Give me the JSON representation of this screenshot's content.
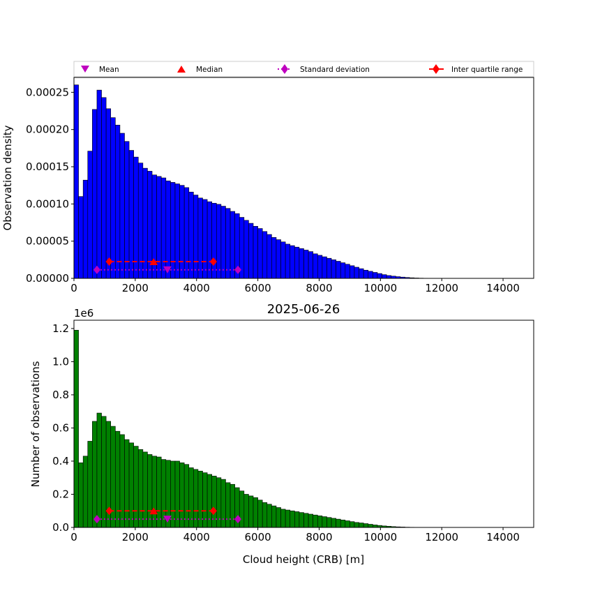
{
  "legend": {
    "items": [
      {
        "label": "Mean",
        "marker": "triangle-down",
        "color": "#bf00bf"
      },
      {
        "label": "Median",
        "marker": "triangle-up",
        "color": "#ff0000"
      },
      {
        "label": "Standard deviation",
        "marker": "diamond",
        "color": "#bf00bf",
        "line": "dotted"
      },
      {
        "label": "Inter quartile range",
        "marker": "diamond",
        "color": "#ff0000",
        "line": "solid"
      }
    ]
  },
  "chart_data": [
    {
      "type": "bar",
      "title": "",
      "xlabel": "",
      "ylabel": "Observation density",
      "xlim": [
        0,
        15000
      ],
      "ylim": [
        0,
        0.00027
      ],
      "xticks": [
        0,
        2000,
        4000,
        6000,
        8000,
        10000,
        12000,
        14000
      ],
      "yticks": [
        0,
        5e-05,
        0.0001,
        0.00015,
        0.0002,
        0.00025
      ],
      "ytick_labels": [
        "0.00000",
        "0.00005",
        "0.00010",
        "0.00015",
        "0.00020",
        "0.00025"
      ],
      "bar_color": "#0000ff",
      "bin_width": 150,
      "bin_start": 0,
      "values": [
        0.00026,
        0.00011,
        0.000132,
        0.000171,
        0.000227,
        0.000253,
        0.000243,
        0.000228,
        0.000216,
        0.000206,
        0.000195,
        0.000184,
        0.000172,
        0.000163,
        0.000155,
        0.000148,
        0.000144,
        0.000139,
        0.000137,
        0.000135,
        0.000131,
        0.000129,
        0.000127,
        0.000125,
        0.000122,
        0.000116,
        0.000112,
        0.000108,
        0.000106,
        0.000103,
        0.000101,
        9.95e-05,
        9.7e-05,
        9.4e-05,
        9e-05,
        8.7e-05,
        8.2e-05,
        7.8e-05,
        7.4e-05,
        7e-05,
        6.7e-05,
        6.3e-05,
        5.9e-05,
        5.5e-05,
        5.2e-05,
        4.9e-05,
        4.6e-05,
        4.4e-05,
        4.2e-05,
        4e-05,
        3.8e-05,
        3.6e-05,
        3.3e-05,
        3.1e-05,
        2.9e-05,
        2.7e-05,
        2.5e-05,
        2.3e-05,
        2.1e-05,
        1.9e-05,
        1.7e-05,
        1.5e-05,
        1.3e-05,
        1.1e-05,
        9.5e-06,
        8e-06,
        6.5e-06,
        5e-06,
        3.8e-06,
        3e-06,
        2.3e-06,
        1.7e-06,
        1.2e-06,
        8e-07,
        5e-07,
        3e-07,
        2e-07,
        1e-07,
        5e-08,
        3e-08
      ],
      "stats": {
        "mean": 3050,
        "median": 2600,
        "std_range": [
          750,
          5350
        ],
        "iqr_range": [
          1150,
          4550
        ],
        "std_y": 1.15e-05,
        "iqr_y": 2.25e-05,
        "mean_y": 1.15e-05,
        "median_y": 2.25e-05
      }
    },
    {
      "type": "bar",
      "title": "2025-06-26",
      "xlabel": "Cloud height (CRB) [m]",
      "ylabel": "Number of observations",
      "offset_label": "1e6",
      "xlim": [
        0,
        15000
      ],
      "ylim": [
        0,
        1.25
      ],
      "xticks": [
        0,
        2000,
        4000,
        6000,
        8000,
        10000,
        12000,
        14000
      ],
      "yticks": [
        0,
        0.2,
        0.4,
        0.6,
        0.8,
        1.0,
        1.2
      ],
      "ytick_labels": [
        "0.0",
        "0.2",
        "0.4",
        "0.6",
        "0.8",
        "1.0",
        "1.2"
      ],
      "bar_color": "#008000",
      "bin_width": 150,
      "bin_start": 0,
      "values": [
        1.19,
        0.39,
        0.43,
        0.52,
        0.64,
        0.69,
        0.67,
        0.64,
        0.61,
        0.58,
        0.56,
        0.53,
        0.51,
        0.49,
        0.47,
        0.455,
        0.44,
        0.43,
        0.425,
        0.41,
        0.405,
        0.4,
        0.4,
        0.39,
        0.38,
        0.36,
        0.35,
        0.34,
        0.33,
        0.32,
        0.31,
        0.3,
        0.29,
        0.27,
        0.26,
        0.24,
        0.22,
        0.2,
        0.19,
        0.18,
        0.165,
        0.15,
        0.14,
        0.13,
        0.12,
        0.11,
        0.105,
        0.1,
        0.095,
        0.09,
        0.085,
        0.08,
        0.075,
        0.07,
        0.065,
        0.06,
        0.055,
        0.05,
        0.045,
        0.04,
        0.035,
        0.03,
        0.027,
        0.023,
        0.019,
        0.015,
        0.012,
        0.009,
        0.007,
        0.005,
        0.0035,
        0.0025,
        0.0015,
        0.001,
        0.0006,
        0.0003,
        0.0002,
        0.0001,
        5e-05,
        3e-05
      ],
      "stats": {
        "mean": 3050,
        "median": 2600,
        "std_range": [
          750,
          5350
        ],
        "iqr_range": [
          1150,
          4550
        ],
        "std_y": 0.05,
        "iqr_y": 0.1,
        "mean_y": 0.05,
        "median_y": 0.1
      }
    }
  ]
}
